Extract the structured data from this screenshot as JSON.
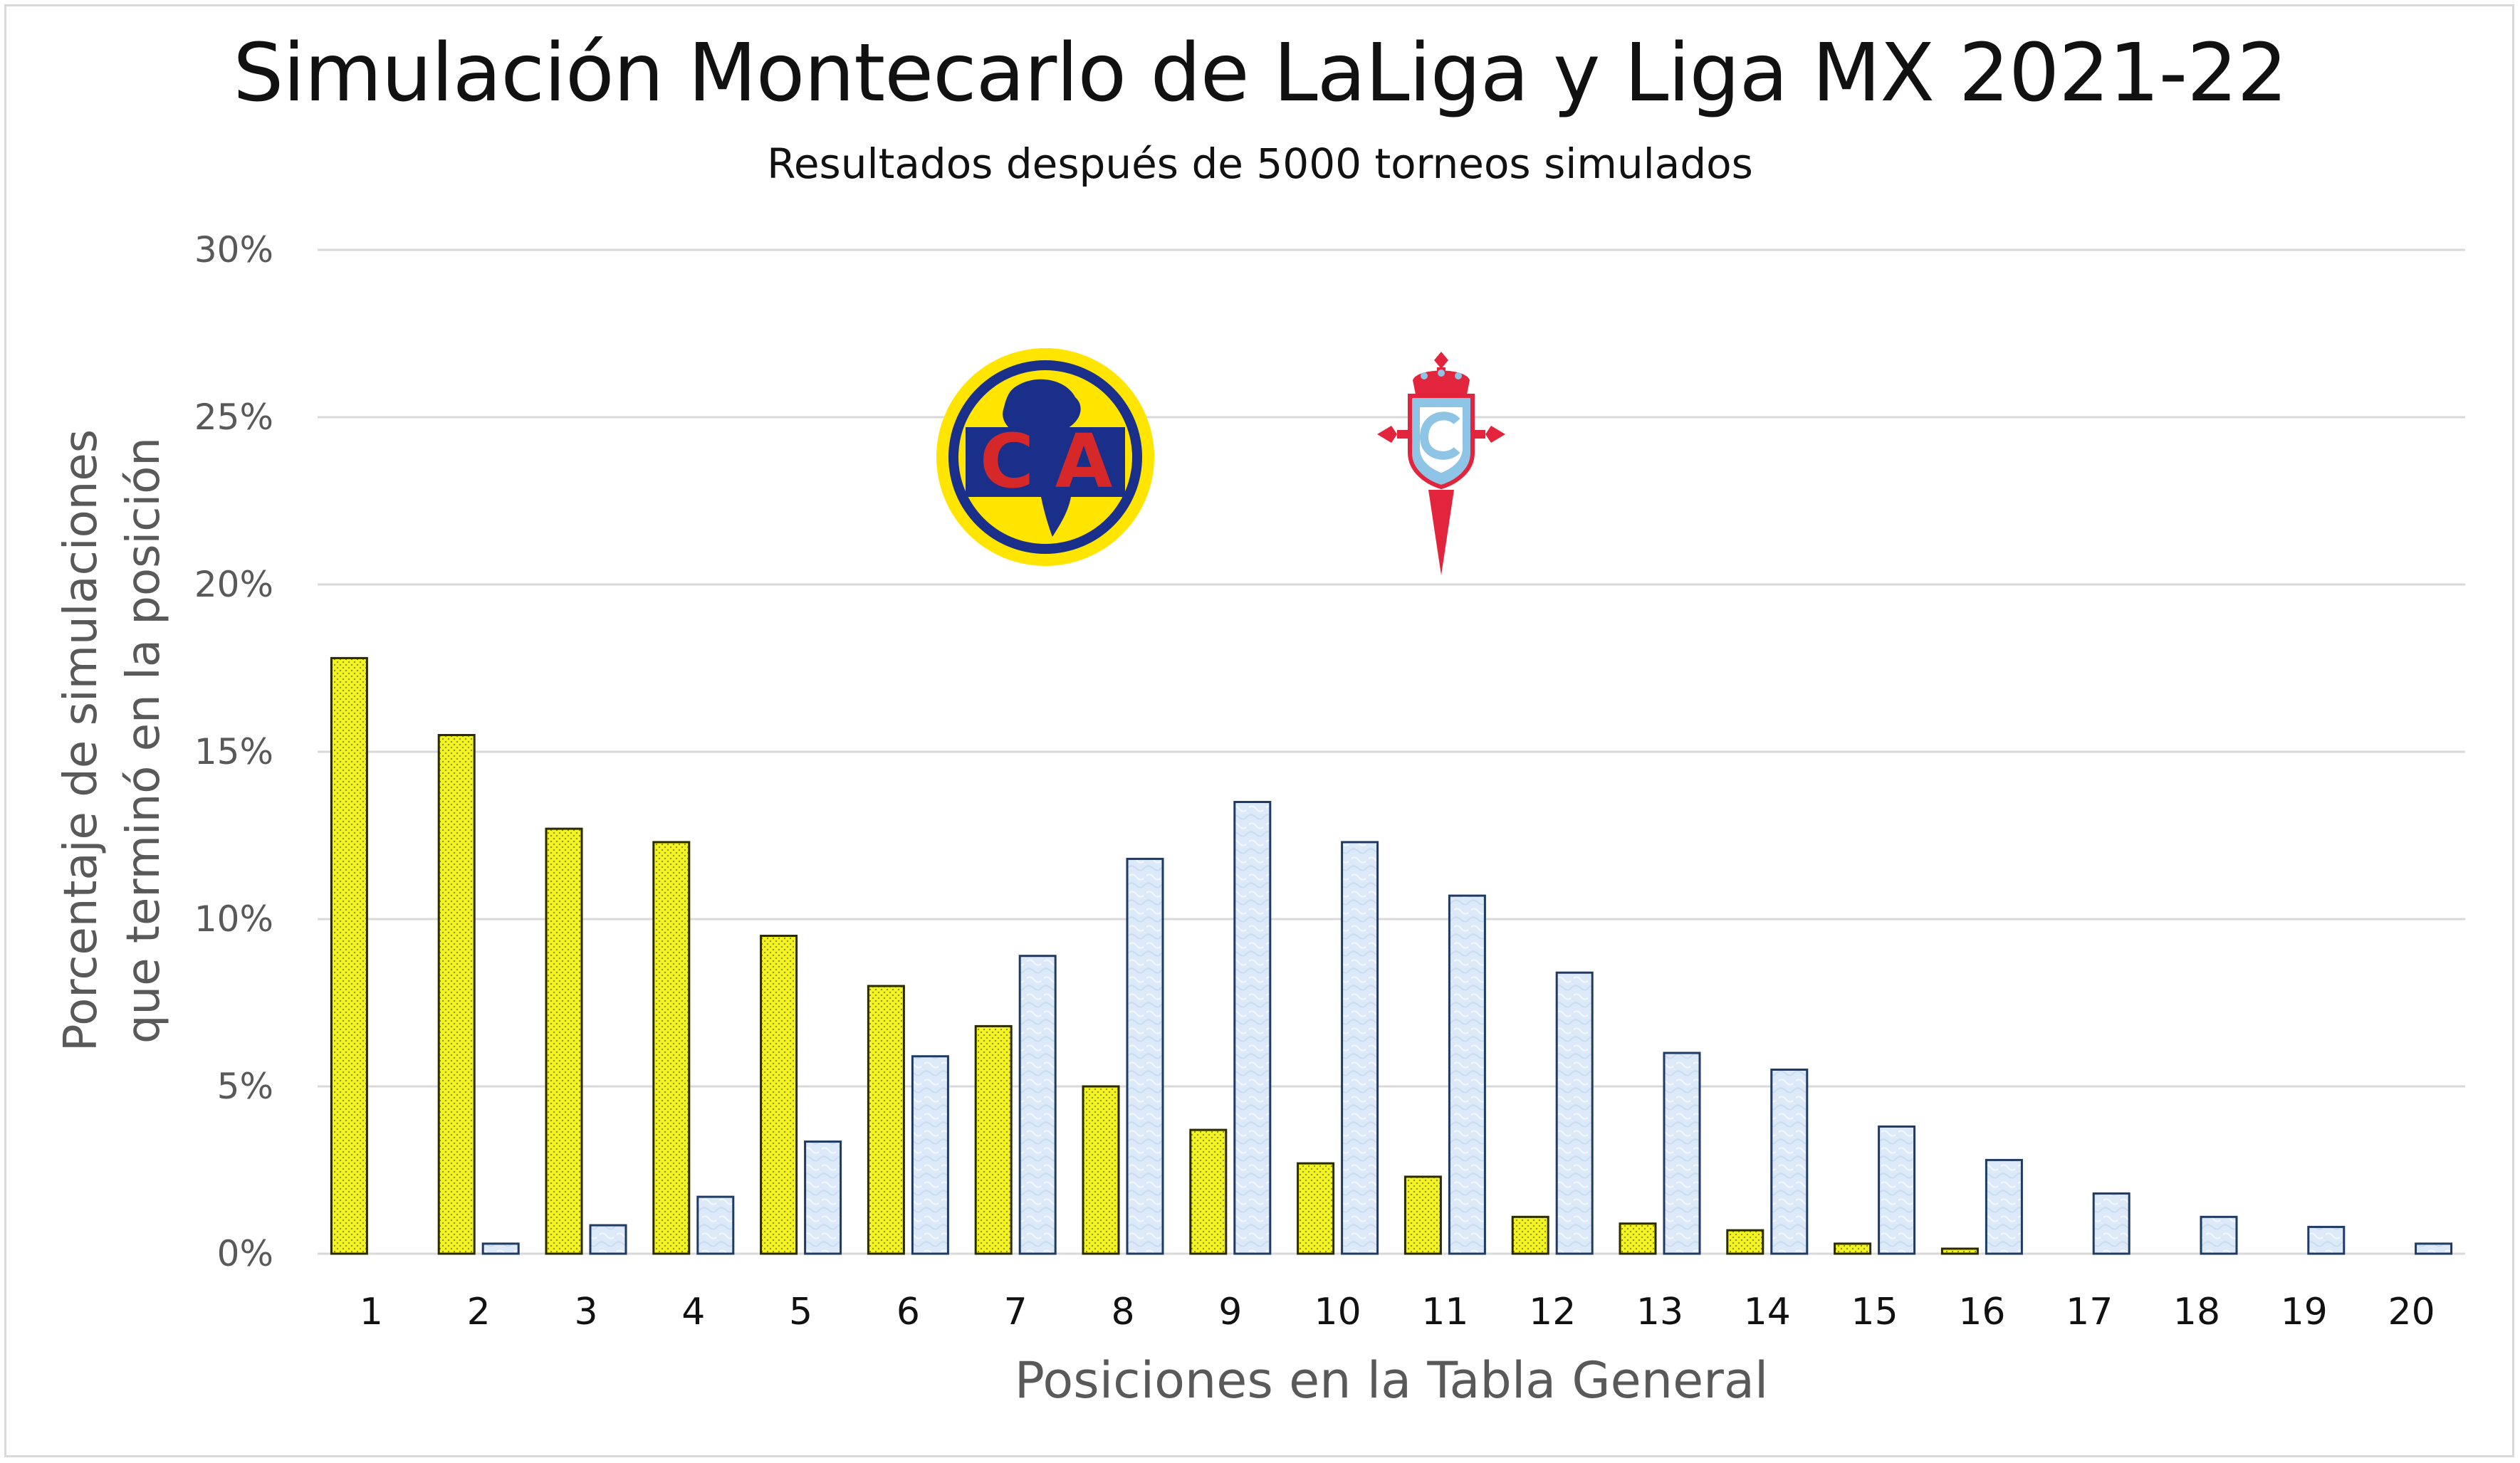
{
  "colors": {
    "america_bar": "#f5f51e",
    "america_border": "#2b2b00",
    "celta_bar": "#dce9f8",
    "celta_border": "#1f3a63",
    "gridline": "#d9d9d9",
    "america_badge_blue": "#1a2f8a",
    "america_badge_yellow": "#ffe500",
    "america_badge_red": "#d62828",
    "celta_red": "#e2253d",
    "celta_blue": "#8ec5e6"
  },
  "logos": {
    "america": {
      "icon": "club-america-crest-icon",
      "text": "CA"
    },
    "celta": {
      "icon": "celta-vigo-crest-icon"
    }
  },
  "chart_data": {
    "type": "bar",
    "title": "Simulación Montecarlo de LaLiga y Liga MX 2021-22",
    "subtitle": "Resultados después de 5000 torneos simulados",
    "xlabel": "Posiciones en la Tabla General",
    "ylabel_lines": [
      "Porcentaje de simulaciones",
      "que terminó en la posición"
    ],
    "categories": [
      "1",
      "2",
      "3",
      "4",
      "5",
      "6",
      "7",
      "8",
      "9",
      "10",
      "11",
      "12",
      "13",
      "14",
      "15",
      "16",
      "17",
      "18",
      "19",
      "20"
    ],
    "ylim": [
      0,
      30
    ],
    "yticks": [
      "0%",
      "5%",
      "10%",
      "15%",
      "20%",
      "25%",
      "30%"
    ],
    "grid": true,
    "legend": "logos above bars",
    "series": [
      {
        "team": "america",
        "values": [
          17.8,
          15.5,
          12.7,
          12.3,
          9.5,
          8.0,
          6.8,
          5.0,
          3.7,
          2.7,
          2.3,
          1.1,
          0.9,
          0.7,
          0.3,
          0.15,
          0,
          0,
          0,
          0
        ]
      },
      {
        "team": "celta",
        "values": [
          0,
          0.3,
          0.85,
          1.7,
          3.35,
          5.9,
          8.9,
          11.8,
          13.5,
          12.3,
          10.7,
          8.4,
          6.0,
          5.5,
          3.8,
          2.8,
          1.8,
          1.1,
          0.8,
          0.3
        ]
      }
    ]
  }
}
